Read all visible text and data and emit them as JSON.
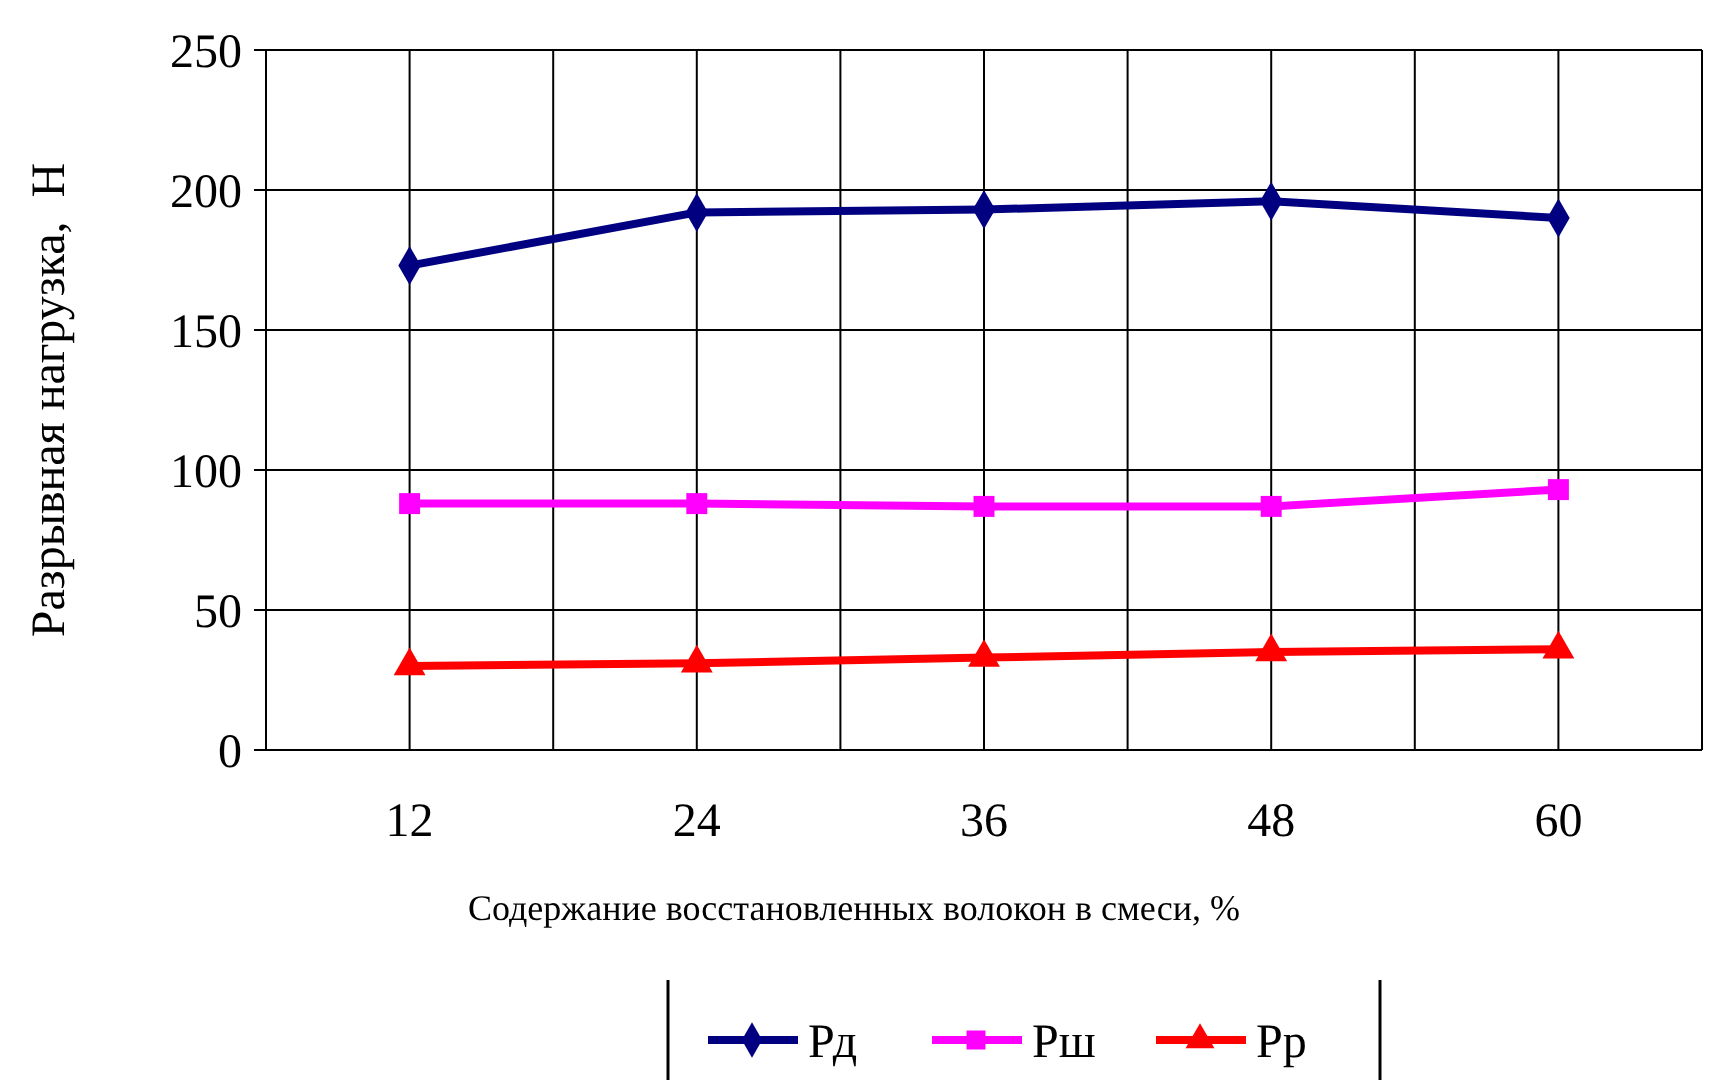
{
  "chart_data": {
    "type": "line",
    "xlabel": "Содержание восстановленных волокон в смеси, %",
    "ylabel": "Разрывная нагрузка,  Н",
    "categories": [
      "12",
      "24",
      "36",
      "48",
      "60"
    ],
    "ylim": [
      0,
      250
    ],
    "yticks": [
      0,
      50,
      100,
      150,
      200,
      250
    ],
    "grid": true,
    "legend": "bottom",
    "line_style": "solid",
    "series": [
      {
        "name": "Рд",
        "color": "#000080",
        "marker": "diamond",
        "values": [
          173,
          192,
          193,
          196,
          190
        ]
      },
      {
        "name": "Рш",
        "color": "#ff00ff",
        "marker": "square",
        "values": [
          88,
          88,
          87,
          87,
          93
        ]
      },
      {
        "name": "Рр",
        "color": "#ff0000",
        "marker": "triangle",
        "values": [
          30,
          31,
          33,
          35,
          36
        ]
      }
    ]
  }
}
